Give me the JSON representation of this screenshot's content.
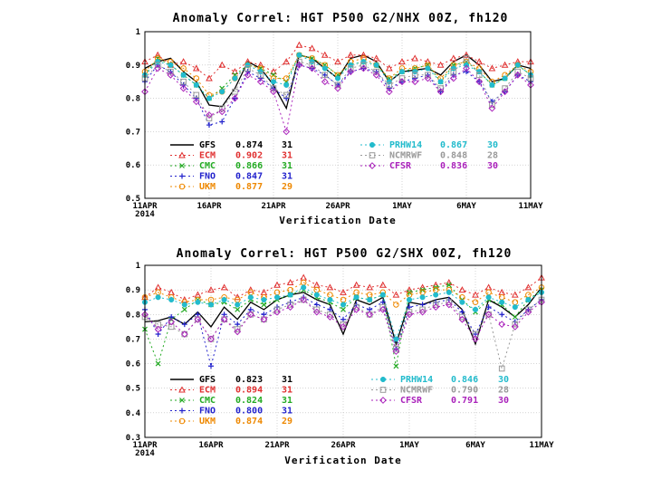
{
  "chart_data": [
    {
      "type": "line",
      "title": "Anomaly Correl: HGT P500 G2/NHX 00Z, fh120",
      "xlabel": "Verification Date",
      "ylabel": "",
      "ylim": [
        0.5,
        1
      ],
      "yticks": [
        "0.5",
        "0.6",
        "0.7",
        "0.8",
        "0.9",
        "1"
      ],
      "xticks": [
        {
          "label": "11APR",
          "day": 0,
          "sub": "2014"
        },
        {
          "label": "16APR",
          "day": 5
        },
        {
          "label": "21APR",
          "day": 10
        },
        {
          "label": "26APR",
          "day": 15
        },
        {
          "label": "1MAY",
          "day": 20
        },
        {
          "label": "6MAY",
          "day": 25
        },
        {
          "label": "11MAY",
          "day": 30
        }
      ],
      "series": [
        {
          "name": "GFS",
          "mean": "0.874",
          "count": "31",
          "color": "#000000",
          "marker": "none",
          "dash": "none",
          "col": 0,
          "values": [
            0.89,
            0.91,
            0.92,
            0.88,
            0.85,
            0.78,
            0.775,
            0.83,
            0.91,
            0.89,
            0.84,
            0.77,
            0.93,
            0.92,
            0.89,
            0.86,
            0.92,
            0.93,
            0.91,
            0.85,
            0.88,
            0.885,
            0.89,
            0.87,
            0.91,
            0.93,
            0.9,
            0.85,
            0.86,
            0.9,
            0.89
          ]
        },
        {
          "name": "ECM",
          "mean": "0.902",
          "count": "31",
          "color": "#e03030",
          "marker": "triangle",
          "dash": "2,3",
          "col": 0,
          "values": [
            0.91,
            0.93,
            0.9,
            0.91,
            0.89,
            0.86,
            0.9,
            0.88,
            0.91,
            0.9,
            0.88,
            0.91,
            0.96,
            0.95,
            0.93,
            0.91,
            0.93,
            0.93,
            0.92,
            0.89,
            0.91,
            0.92,
            0.91,
            0.9,
            0.92,
            0.93,
            0.91,
            0.89,
            0.9,
            0.91,
            0.91
          ]
        },
        {
          "name": "CMC",
          "mean": "0.866",
          "count": "31",
          "color": "#22aa22",
          "marker": "x",
          "dash": "2,3",
          "col": 0,
          "values": [
            0.87,
            0.92,
            0.9,
            0.87,
            0.84,
            0.8,
            0.83,
            0.87,
            0.9,
            0.89,
            0.87,
            0.85,
            0.93,
            0.92,
            0.9,
            0.87,
            0.9,
            0.91,
            0.9,
            0.86,
            0.88,
            0.89,
            0.9,
            0.85,
            0.9,
            0.91,
            0.88,
            0.84,
            0.86,
            0.9,
            0.87
          ]
        },
        {
          "name": "FNO",
          "mean": "0.847",
          "count": "31",
          "color": "#2222cc",
          "marker": "plus",
          "dash": "2,3",
          "col": 0,
          "values": [
            0.85,
            0.9,
            0.88,
            0.84,
            0.8,
            0.72,
            0.73,
            0.8,
            0.88,
            0.86,
            0.83,
            0.8,
            0.9,
            0.89,
            0.87,
            0.84,
            0.88,
            0.89,
            0.88,
            0.83,
            0.85,
            0.86,
            0.87,
            0.82,
            0.87,
            0.88,
            0.85,
            0.79,
            0.82,
            0.87,
            0.85
          ]
        },
        {
          "name": "UKM",
          "mean": "0.877",
          "count": "29",
          "color": "#ee8800",
          "marker": "circle",
          "dash": "2,3",
          "col": 0,
          "values": [
            0.88,
            0.92,
            0.91,
            0.89,
            0.86,
            0.81,
            0.82,
            0.86,
            0.9,
            0.89,
            0.86,
            0.86,
            0.93,
            0.92,
            0.9,
            0.87,
            0.91,
            0.92,
            0.9,
            0.86,
            0.89,
            0.89,
            0.9,
            0.86,
            0.9,
            0.91,
            0.89,
            0.85,
            0.87,
            0.9,
            0.88
          ]
        },
        {
          "name": "PRHW14",
          "mean": "0.867",
          "count": "30",
          "color": "#22bbcc",
          "marker": "dot",
          "dash": "2,3",
          "col": 1,
          "values": [
            0.87,
            0.91,
            0.9,
            0.87,
            0.84,
            0.8,
            0.82,
            0.86,
            0.9,
            0.88,
            0.85,
            0.84,
            0.93,
            0.91,
            0.89,
            0.86,
            0.9,
            0.91,
            0.9,
            0.85,
            0.88,
            0.88,
            0.89,
            0.85,
            0.89,
            0.9,
            0.88,
            0.84,
            0.86,
            0.9,
            0.87
          ]
        },
        {
          "name": "NCMRWF",
          "mean": "0.848",
          "count": "28",
          "color": "#999999",
          "marker": "square",
          "dash": "2,3",
          "col": 1,
          "values": [
            0.86,
            0.9,
            0.88,
            0.85,
            0.81,
            0.74,
            0.77,
            0.82,
            0.89,
            0.87,
            0.83,
            0.81,
            0.91,
            0.9,
            0.87,
            0.84,
            0.89,
            0.9,
            0.88,
            0.84,
            0.86,
            0.87,
            0.87,
            0.83,
            0.88,
            0.92,
            0.87,
            0.78,
            0.83,
            0.88,
            0.86
          ]
        },
        {
          "name": "CFSR",
          "mean": "0.836",
          "count": "30",
          "color": "#aa22bb",
          "marker": "diamond",
          "dash": "2,3",
          "col": 1,
          "values": [
            0.82,
            0.89,
            0.87,
            0.83,
            0.79,
            0.75,
            0.76,
            0.8,
            0.87,
            0.85,
            0.82,
            0.7,
            0.9,
            0.89,
            0.85,
            0.83,
            0.88,
            0.89,
            0.87,
            0.82,
            0.85,
            0.85,
            0.86,
            0.82,
            0.86,
            0.89,
            0.85,
            0.77,
            0.82,
            0.87,
            0.84
          ]
        }
      ]
    },
    {
      "type": "line",
      "title": "Anomaly Correl: HGT P500 G2/SHX 00Z, fh120",
      "xlabel": "Verification Date",
      "ylabel": "",
      "ylim": [
        0.3,
        1
      ],
      "yticks": [
        "0.3",
        "0.4",
        "0.5",
        "0.6",
        "0.7",
        "0.8",
        "0.9",
        "1"
      ],
      "xticks": [
        {
          "label": "11APR",
          "day": 0,
          "sub": "2014"
        },
        {
          "label": "16APR",
          "day": 5
        },
        {
          "label": "21APR",
          "day": 10
        },
        {
          "label": "26APR",
          "day": 15
        },
        {
          "label": "1MAY",
          "day": 20
        },
        {
          "label": "6MAY",
          "day": 25
        },
        {
          "label": "11MAY",
          "day": 30
        }
      ],
      "series": [
        {
          "name": "GFS",
          "mean": "0.823",
          "count": "31",
          "color": "#000000",
          "marker": "none",
          "dash": "none",
          "col": 0,
          "values": [
            0.77,
            0.775,
            0.79,
            0.76,
            0.81,
            0.75,
            0.83,
            0.78,
            0.85,
            0.82,
            0.86,
            0.88,
            0.89,
            0.86,
            0.84,
            0.72,
            0.86,
            0.84,
            0.87,
            0.68,
            0.85,
            0.84,
            0.86,
            0.87,
            0.82,
            0.68,
            0.86,
            0.83,
            0.79,
            0.84,
            0.91
          ]
        },
        {
          "name": "ECM",
          "mean": "0.894",
          "count": "31",
          "color": "#e03030",
          "marker": "triangle",
          "dash": "2,3",
          "col": 0,
          "values": [
            0.87,
            0.91,
            0.89,
            0.86,
            0.88,
            0.9,
            0.91,
            0.87,
            0.9,
            0.89,
            0.92,
            0.93,
            0.95,
            0.92,
            0.91,
            0.89,
            0.92,
            0.91,
            0.92,
            0.88,
            0.9,
            0.91,
            0.92,
            0.93,
            0.9,
            0.88,
            0.91,
            0.89,
            0.88,
            0.91,
            0.95
          ]
        },
        {
          "name": "CMC",
          "mean": "0.824",
          "count": "31",
          "color": "#22aa22",
          "marker": "x",
          "dash": "2,3",
          "col": 0,
          "values": [
            0.74,
            0.6,
            0.78,
            0.82,
            0.86,
            0.84,
            0.85,
            0.82,
            0.86,
            0.84,
            0.86,
            0.88,
            0.9,
            0.87,
            0.85,
            0.82,
            0.87,
            0.86,
            0.88,
            0.59,
            0.89,
            0.9,
            0.91,
            0.92,
            0.86,
            0.81,
            0.86,
            0.84,
            0.79,
            0.86,
            0.9
          ]
        },
        {
          "name": "FNO",
          "mean": "0.800",
          "count": "31",
          "color": "#2222cc",
          "marker": "plus",
          "dash": "2,3",
          "col": 0,
          "values": [
            0.82,
            0.72,
            0.79,
            0.76,
            0.8,
            0.59,
            0.8,
            0.76,
            0.82,
            0.8,
            0.83,
            0.85,
            0.87,
            0.84,
            0.82,
            0.78,
            0.84,
            0.82,
            0.85,
            0.66,
            0.83,
            0.84,
            0.85,
            0.86,
            0.81,
            0.72,
            0.83,
            0.8,
            0.77,
            0.82,
            0.86
          ]
        },
        {
          "name": "UKM",
          "mean": "0.874",
          "count": "29",
          "color": "#ee8800",
          "marker": "circle",
          "dash": "2,3",
          "col": 0,
          "values": [
            0.87,
            0.89,
            0.87,
            0.85,
            0.86,
            0.86,
            0.87,
            0.86,
            0.89,
            0.87,
            0.89,
            0.9,
            0.93,
            0.9,
            0.88,
            0.86,
            0.89,
            0.88,
            0.89,
            0.84,
            0.88,
            0.89,
            0.9,
            0.9,
            0.87,
            0.85,
            0.89,
            0.87,
            0.85,
            0.88,
            0.91
          ]
        },
        {
          "name": "PRHW14",
          "mean": "0.846",
          "count": "30",
          "color": "#22bbcc",
          "marker": "dot",
          "dash": "2,3",
          "col": 1,
          "values": [
            0.85,
            0.87,
            0.86,
            0.84,
            0.85,
            0.84,
            0.86,
            0.84,
            0.87,
            0.86,
            0.87,
            0.88,
            0.91,
            0.88,
            0.86,
            0.84,
            0.87,
            0.86,
            0.88,
            0.7,
            0.86,
            0.87,
            0.88,
            0.89,
            0.85,
            0.82,
            0.87,
            0.85,
            0.83,
            0.86,
            0.89
          ]
        },
        {
          "name": "NCMRWF",
          "mean": "0.790",
          "count": "28",
          "color": "#999999",
          "marker": "square",
          "dash": "2,3",
          "col": 1,
          "values": [
            0.79,
            0.76,
            0.75,
            0.72,
            0.78,
            0.7,
            0.78,
            0.74,
            0.8,
            0.78,
            0.82,
            0.84,
            0.86,
            0.82,
            0.8,
            0.76,
            0.83,
            0.8,
            0.83,
            0.66,
            0.81,
            0.82,
            0.84,
            0.85,
            0.79,
            0.72,
            0.8,
            0.58,
            0.76,
            0.82,
            0.86
          ]
        },
        {
          "name": "CFSR",
          "mean": "0.791",
          "count": "30",
          "color": "#aa22bb",
          "marker": "diamond",
          "dash": "2,3",
          "col": 1,
          "values": [
            0.8,
            0.74,
            0.77,
            0.72,
            0.78,
            0.7,
            0.78,
            0.73,
            0.8,
            0.78,
            0.81,
            0.83,
            0.86,
            0.81,
            0.79,
            0.75,
            0.82,
            0.8,
            0.82,
            0.65,
            0.8,
            0.81,
            0.83,
            0.84,
            0.78,
            0.7,
            0.8,
            0.76,
            0.75,
            0.81,
            0.85
          ]
        }
      ]
    }
  ]
}
